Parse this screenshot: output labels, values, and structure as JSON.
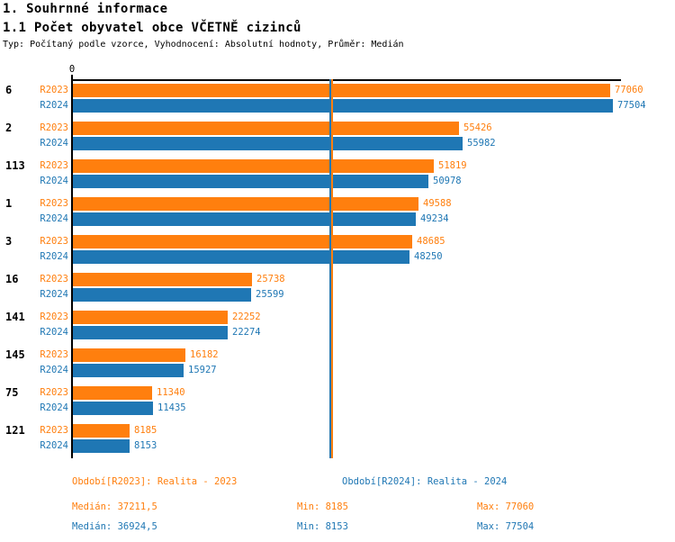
{
  "header": {
    "title": "1. Souhrnné informace",
    "subtitle": "1.1 Počet obyvatel obce VČETNĚ cizinců",
    "meta": "Typ: Počítaný podle vzorce, Vyhodnocení: Absolutní hodnoty, Průměr: Medián"
  },
  "colors": {
    "r2023": "#ff7f0e",
    "r2024": "#1f77b4",
    "axis": "#000000",
    "background": "#ffffff"
  },
  "chart_data": {
    "type": "bar",
    "orientation": "horizontal",
    "title": "1.1 Počet obyvatel obce VČETNĚ cizinců",
    "categories": [
      "6",
      "2",
      "113",
      "1",
      "3",
      "16",
      "141",
      "145",
      "75",
      "121"
    ],
    "series": [
      {
        "name": "R2023",
        "color": "#ff7f0e",
        "values": [
          77060,
          55426,
          51819,
          49588,
          48685,
          25738,
          22252,
          16182,
          11340,
          8185
        ],
        "median": 37211.5,
        "min": 8185,
        "max": 77060
      },
      {
        "name": "R2024",
        "color": "#1f77b4",
        "values": [
          77504,
          55982,
          50978,
          49234,
          48250,
          25599,
          22274,
          15927,
          11435,
          8153
        ],
        "median": 36924.5,
        "min": 8153,
        "max": 77504
      }
    ],
    "xlabel": "",
    "ylabel": "",
    "xlim": [
      0,
      78700
    ],
    "axis": {
      "zero_label": "0"
    },
    "grid": false,
    "median_lines": true,
    "legend_position": "bottom"
  },
  "legend": {
    "r2023": "Období[R2023]: Realita - 2023",
    "r2024": "Období[R2024]: Realita - 2024"
  },
  "stats": {
    "r2023": {
      "median": "Medián: 37211,5",
      "min": "Min: 8185",
      "max": "Max: 77060"
    },
    "r2024": {
      "median": "Medián: 36924,5",
      "min": "Min: 8153",
      "max": "Max: 77504"
    }
  }
}
